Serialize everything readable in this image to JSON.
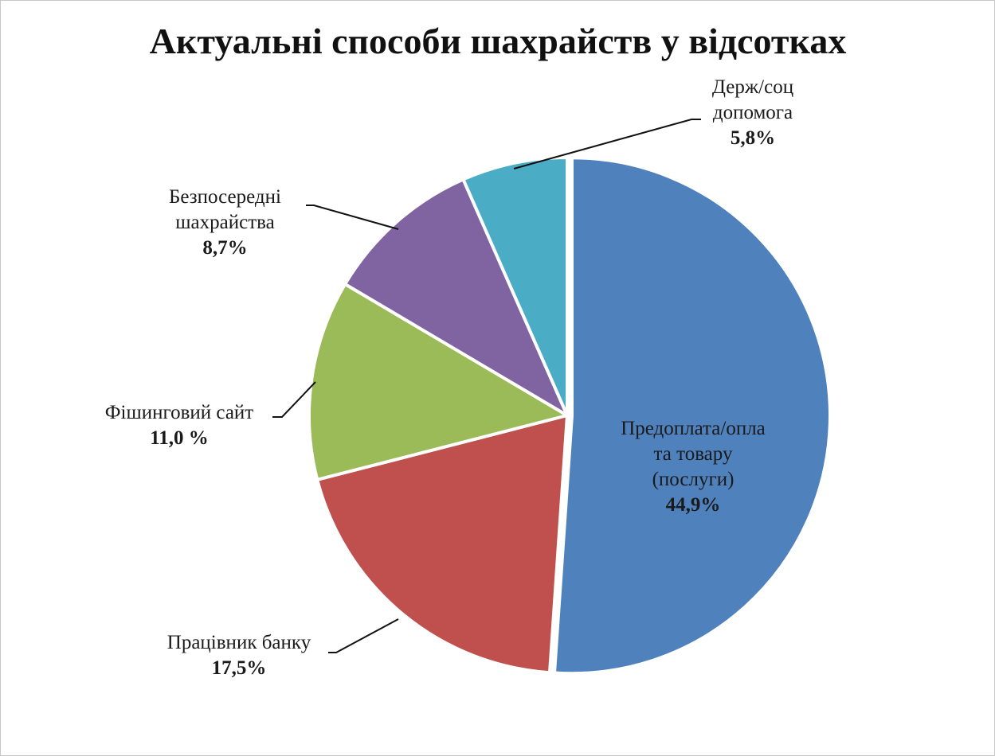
{
  "chart_data": {
    "type": "pie",
    "title": "Актуальні способи шахрайств у відсотках",
    "series": [
      {
        "name": "Предоплата/оплата товару (послуги)",
        "value": 44.9,
        "label_lines": [
          "Предоплата/опла",
          "та товару",
          "(послуги)"
        ],
        "value_label": "44,9%",
        "color": "#4F81BD"
      },
      {
        "name": "Працівник банку",
        "value": 17.5,
        "label_lines": [
          "Працівник банку"
        ],
        "value_label": "17,5%",
        "color": "#C0504D"
      },
      {
        "name": "Фішинговий сайт",
        "value": 11.0,
        "label_lines": [
          "Фішинговий сайт"
        ],
        "value_label": "11,0 %",
        "color": "#9BBB59"
      },
      {
        "name": "Безпосередні шахрайства",
        "value": 8.7,
        "label_lines": [
          "Безпосередні",
          "шахрайства"
        ],
        "value_label": "8,7%",
        "color": "#8064A2"
      },
      {
        "name": "Держ/соц допомога",
        "value": 5.8,
        "label_lines": [
          "Держ/соц",
          "допомога"
        ],
        "value_label": "5,8%",
        "color": "#4BACC6"
      }
    ],
    "legend": "none",
    "data_labels": "outside-with-leader-lines",
    "exploded": true
  }
}
